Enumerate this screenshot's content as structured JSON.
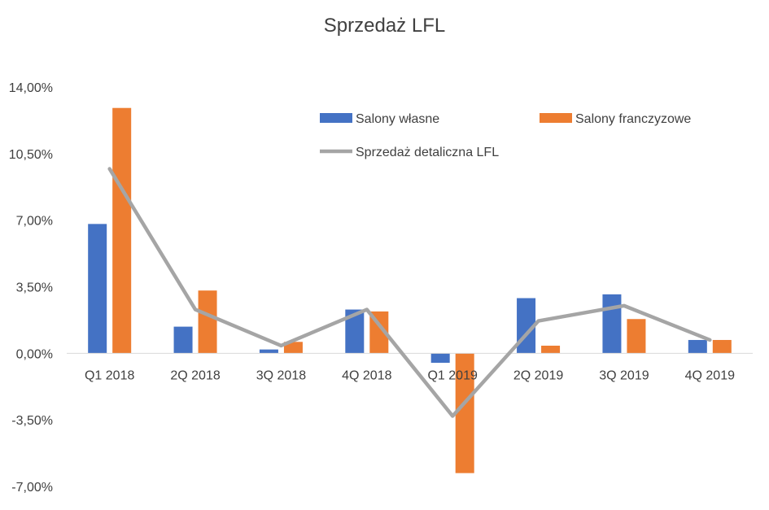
{
  "chart_data": {
    "type": "bar",
    "title": "Sprzedaż LFL",
    "categories": [
      "Q1 2018",
      "2Q 2018",
      "3Q 2018",
      "4Q 2018",
      "Q1 2019",
      "2Q 2019",
      "3Q 2019",
      "4Q 2019"
    ],
    "ylim": [
      -7.0,
      14.0
    ],
    "yticks": [
      "14,00%",
      "10,50%",
      "7,00%",
      "3,50%",
      "0,00%",
      "-3,50%",
      "-7,00%"
    ],
    "ytick_values": [
      14.0,
      10.5,
      7.0,
      3.5,
      0.0,
      -3.5,
      -7.0
    ],
    "grid": false,
    "legend_position": "top-right",
    "series": [
      {
        "name": "Salony własne",
        "type": "bar",
        "color": "#4472C4",
        "values": [
          6.8,
          1.4,
          0.2,
          2.3,
          -0.5,
          2.9,
          3.1,
          0.7
        ]
      },
      {
        "name": "Salony franczyzowe",
        "type": "bar",
        "color": "#ED7D31",
        "values": [
          12.9,
          3.3,
          0.6,
          2.2,
          -6.3,
          0.4,
          1.8,
          0.7
        ]
      },
      {
        "name": "Sprzedaż detaliczna LFL",
        "type": "line",
        "color": "#A5A5A5",
        "values": [
          9.7,
          2.3,
          0.4,
          2.3,
          -3.3,
          1.7,
          2.5,
          0.7
        ]
      }
    ]
  }
}
